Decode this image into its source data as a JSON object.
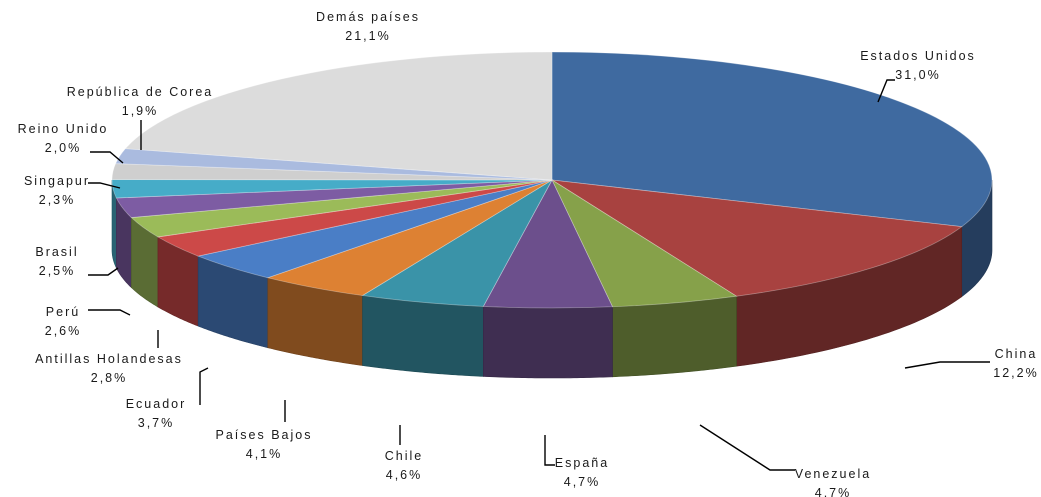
{
  "chart_data": {
    "type": "pie",
    "title": "",
    "three_d": true,
    "start_angle": "12 o'clock",
    "direction": "clockwise",
    "legend": "none",
    "slices": [
      {
        "name": "Estados Unidos",
        "value": 31.0,
        "label": "31,0%",
        "color": "#3f6aa0"
      },
      {
        "name": "China",
        "value": 12.2,
        "label": "12,2%",
        "color": "#a84240"
      },
      {
        "name": "Venezuela",
        "value": 4.7,
        "label": "4.7%",
        "color": "#86a14a"
      },
      {
        "name": "España",
        "value": 4.7,
        "label": "4,7%",
        "color": "#6c4f8c"
      },
      {
        "name": "Chile",
        "value": 4.6,
        "label": "4,6%",
        "color": "#3a93a8"
      },
      {
        "name": "Países Bajos",
        "value": 4.1,
        "label": "4,1%",
        "color": "#dd8133"
      },
      {
        "name": "Ecuador",
        "value": 3.7,
        "label": "3,7%",
        "color": "#4a7ec6"
      },
      {
        "name": "Antillas Holandesas",
        "value": 2.8,
        "label": "2,8%",
        "color": "#cc4948"
      },
      {
        "name": "Perú",
        "value": 2.6,
        "label": "2,6%",
        "color": "#9bbb59"
      },
      {
        "name": "Brasil",
        "value": 2.5,
        "label": "2,5%",
        "color": "#7d5ca3"
      },
      {
        "name": "Singapur",
        "value": 2.3,
        "label": "2,3%",
        "color": "#46acc8"
      },
      {
        "name": "Reino Unido",
        "value": 2.0,
        "label": "2,0%",
        "color": "#cfcfcf"
      },
      {
        "name": "República de Corea",
        "value": 1.9,
        "label": "1,9%",
        "color": "#aabbdf"
      },
      {
        "name": "Demás países",
        "value": 21.1,
        "label": "21,1%",
        "color": "#dcdcdc"
      }
    ]
  }
}
